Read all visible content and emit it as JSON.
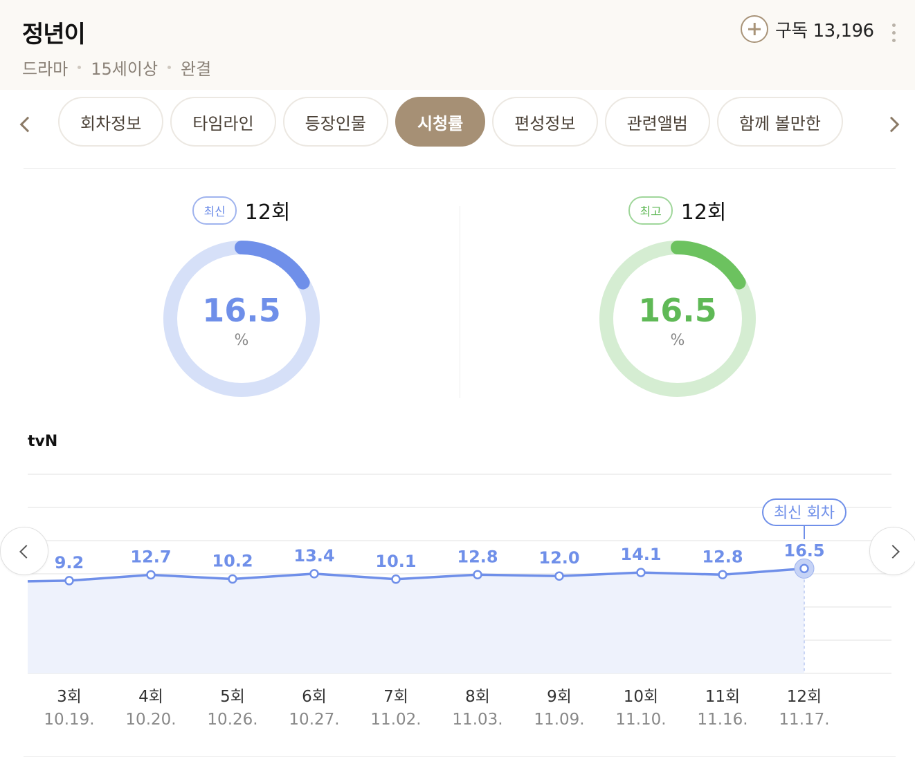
{
  "header": {
    "title": "정년이",
    "meta": [
      "드라마",
      "15세이상",
      "완결"
    ],
    "subscribe_label": "구독 13,196",
    "more_icon": "more-vertical-icon",
    "plus_icon": "plus-icon"
  },
  "tabs": [
    {
      "label": "회차정보",
      "active": false
    },
    {
      "label": "타임라인",
      "active": false
    },
    {
      "label": "등장인물",
      "active": false
    },
    {
      "label": "시청률",
      "active": true
    },
    {
      "label": "편성정보",
      "active": false
    },
    {
      "label": "관련앨범",
      "active": false
    },
    {
      "label": "함께 볼만한",
      "active": false
    }
  ],
  "stats": {
    "latest": {
      "badge": "최신",
      "episode": "12회",
      "value": "16.5",
      "unit": "%",
      "progress": 0.165,
      "color": "#6f8fe9",
      "track": "#d6e0f8"
    },
    "best": {
      "badge": "최고",
      "episode": "12회",
      "value": "16.5",
      "unit": "%",
      "progress": 0.165,
      "color": "#6cc25f",
      "track": "#d5edd2"
    }
  },
  "channel": "tvN",
  "chart_data": {
    "type": "line",
    "categories": [
      "3회",
      "4회",
      "5회",
      "6회",
      "7회",
      "8회",
      "9회",
      "10회",
      "11회",
      "12회"
    ],
    "dates": [
      "10.19.",
      "10.20.",
      "10.26.",
      "10.27.",
      "11.02.",
      "11.03.",
      "11.09.",
      "11.10.",
      "11.16.",
      "11.17."
    ],
    "values": [
      9.2,
      12.7,
      10.2,
      13.4,
      10.1,
      12.8,
      12.0,
      14.1,
      12.8,
      16.5
    ],
    "labels": [
      "9.2",
      "12.7",
      "10.2",
      "13.4",
      "10.1",
      "12.8",
      "12.0",
      "14.1",
      "12.8",
      "16.5"
    ],
    "latest_label": "최신 회차",
    "line_color": "#6f8fe9",
    "fill_color": "#eef2fc",
    "grid": true
  }
}
